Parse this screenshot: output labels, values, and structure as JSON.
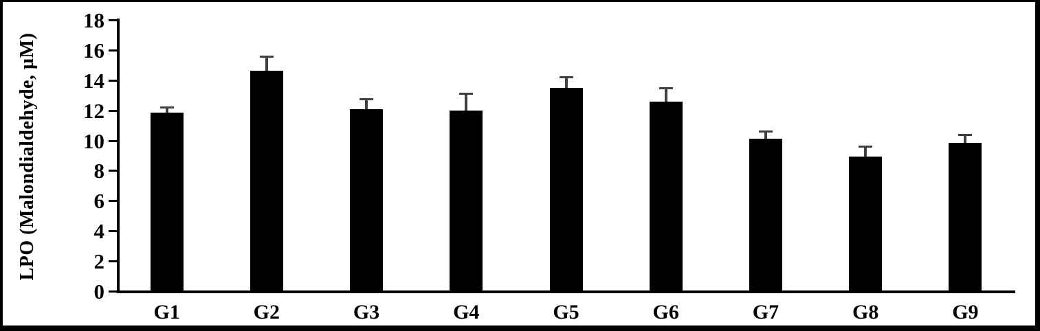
{
  "chart_data": {
    "type": "bar",
    "title": "",
    "xlabel": "",
    "ylabel": "LPO (Malondialdehyde, µM)",
    "categories": [
      "G1",
      "G2",
      "G3",
      "G4",
      "G5",
      "G6",
      "G7",
      "G8",
      "G9"
    ],
    "series": [
      {
        "name": "LPO (Malondialdehyde, µM)",
        "values": [
          11.8,
          14.6,
          12.05,
          11.95,
          13.45,
          12.55,
          10.05,
          8.9,
          9.8
        ],
        "errors_upper": [
          0.35,
          0.95,
          0.65,
          1.15,
          0.7,
          0.9,
          0.5,
          0.65,
          0.55
        ]
      }
    ],
    "ylim": [
      0,
      18
    ],
    "yticks": [
      0,
      2,
      4,
      6,
      8,
      10,
      12,
      14,
      16,
      18
    ],
    "grid": false,
    "legend": "none",
    "colors": {
      "bar": "#000000",
      "error_bar": "#404040",
      "axis": "#000000",
      "text": "#000000",
      "background": "#ffffff",
      "frame_border": "#000000"
    }
  }
}
